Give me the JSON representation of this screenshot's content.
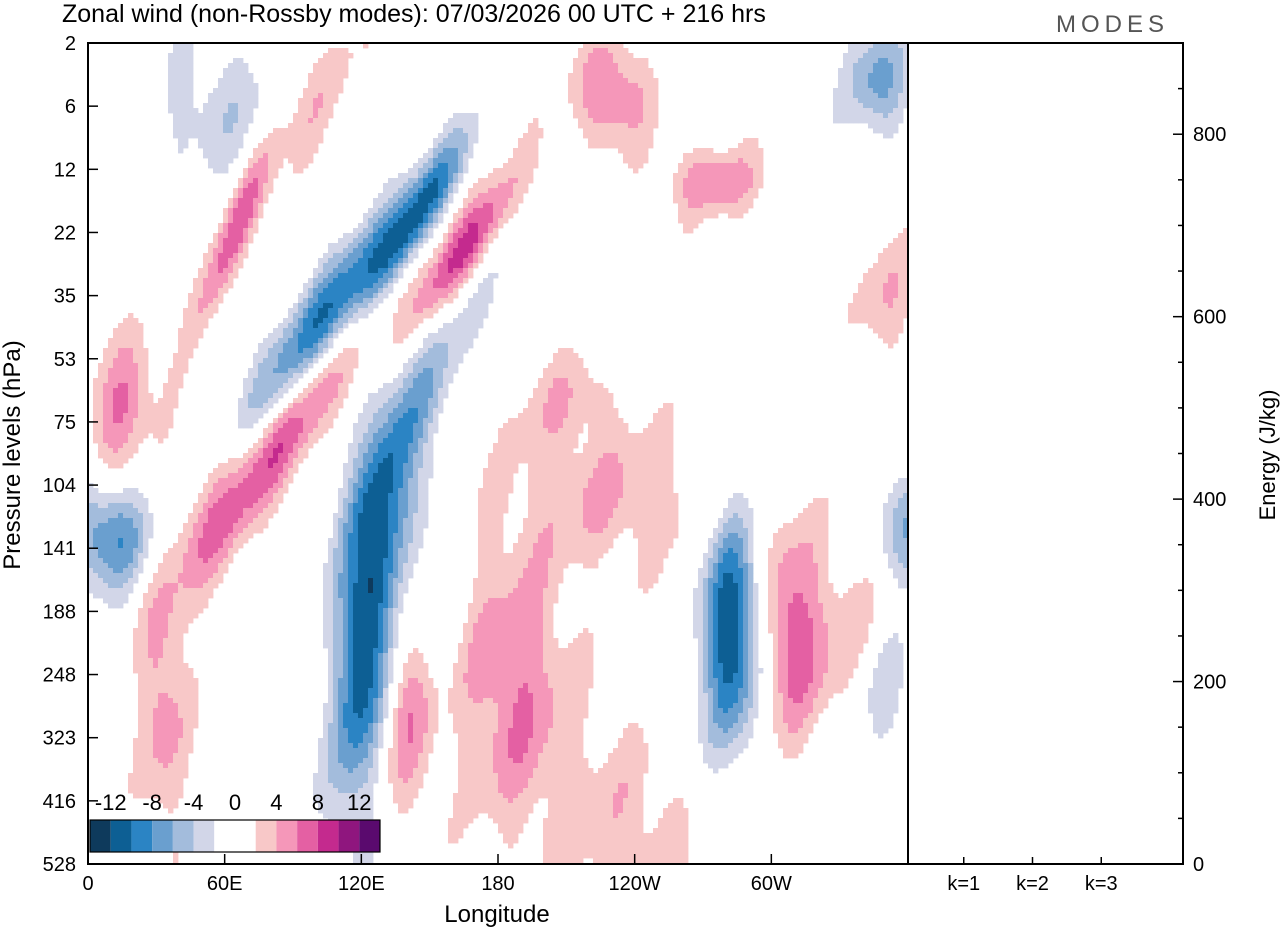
{
  "title": "Zonal wind (non-Rossby modes):  07/03/2026  00 UTC  + 216 hrs",
  "logo": "MODES",
  "colors": {
    "neg": [
      "#0e3a5c",
      "#0d5f94",
      "#2b84c4",
      "#6a9fcf",
      "#a3bcdc",
      "#d2d6e8"
    ],
    "pos": [
      "#f8c8c8",
      "#f597b9",
      "#e460a3",
      "#c42a8e",
      "#8f167e",
      "#5a0a6e"
    ],
    "line": "#000000"
  },
  "chart_data": [
    {
      "type": "heatmap",
      "title": "Zonal wind (non-Rossby modes):  07/03/2026  00 UTC  + 216 hrs",
      "xlabel": "Longitude",
      "ylabel": "Pressure levels (hPa)",
      "x_ticks": [
        "0",
        "60E",
        "120E",
        "180",
        "120W",
        "60W"
      ],
      "x_tick_values": [
        0,
        60,
        120,
        180,
        240,
        300
      ],
      "xlim": [
        0,
        360
      ],
      "y_ticks": [
        "2",
        "6",
        "12",
        "22",
        "35",
        "53",
        "75",
        "104",
        "141",
        "188",
        "248",
        "323",
        "416",
        "528"
      ],
      "colorbar": {
        "labels": [
          "-12",
          "-8",
          "-4",
          "0",
          "4",
          "8",
          "12"
        ],
        "label_values": [
          -12,
          -8,
          -4,
          0,
          4,
          8,
          12
        ],
        "levels": [
          -14,
          -12,
          -10,
          -8,
          -6,
          -4,
          -2,
          2,
          4,
          6,
          8,
          10,
          12,
          14
        ]
      },
      "features": [
        {
          "lon": 62,
          "lev": 3.2,
          "a": 7.5,
          "rl": 14,
          "rv": 0.45,
          "tilt": 0.08
        },
        {
          "lon": 104,
          "lev": 4.3,
          "a": -9.5,
          "rl": 24,
          "rv": 0.55,
          "tilt": 0.045
        },
        {
          "lon": 145,
          "lev": 2.7,
          "a": -9.5,
          "rl": 15,
          "rv": 0.4,
          "tilt": 0.05
        },
        {
          "lon": 165,
          "lev": 3.3,
          "a": 9,
          "rl": 18,
          "rv": 0.42,
          "tilt": 0.045
        },
        {
          "lon": 138,
          "lev": 6.2,
          "a": -7,
          "rl": 24,
          "rv": 0.6,
          "tilt": 0.06
        },
        {
          "lon": 88,
          "lev": 6.2,
          "a": 7,
          "rl": 20,
          "rv": 0.55,
          "tilt": 0.05
        },
        {
          "lon": 15,
          "lev": 5.8,
          "a": 6.5,
          "rl": 10,
          "rv": 0.7,
          "tilt": 0.03
        },
        {
          "lon": 9,
          "lev": 7.8,
          "a": -8.5,
          "rl": 13,
          "rv": 0.6,
          "tilt": 0
        },
        {
          "lon": 54,
          "lev": 7.6,
          "a": 4.5,
          "rl": 14,
          "rv": 0.8,
          "tilt": 0.04
        },
        {
          "lon": 123,
          "lev": 9.3,
          "a": -13.5,
          "rl": 10,
          "rv": 1.6,
          "tilt": 0.1
        },
        {
          "lon": 33,
          "lev": 10.5,
          "a": 5,
          "rl": 8,
          "rv": 1.5,
          "tilt": 0
        },
        {
          "lon": 140,
          "lev": 10.5,
          "a": 5.5,
          "rl": 9,
          "rv": 1.2,
          "tilt": 0
        },
        {
          "lon": 187,
          "lev": 10.2,
          "a": 6,
          "rl": 18,
          "rv": 1.6,
          "tilt": 0
        },
        {
          "lon": 282,
          "lev": 9.3,
          "a": -12,
          "rl": 9,
          "rv": 1.3,
          "tilt": 0
        },
        {
          "lon": 308,
          "lev": 9.3,
          "a": 6,
          "rl": 9,
          "rv": 1.2,
          "tilt": 0
        },
        {
          "lon": 330,
          "lev": 9.5,
          "a": 3.5,
          "rl": 16,
          "rv": 1.1,
          "tilt": 0
        },
        {
          "lon": 233,
          "lev": 7.2,
          "a": 4,
          "rl": 32,
          "rv": 0.8,
          "tilt": 0
        },
        {
          "lon": 208,
          "lev": 5.6,
          "a": 3,
          "rl": 18,
          "rv": 0.6,
          "tilt": 0
        },
        {
          "lon": 230,
          "lev": 0.8,
          "a": 6.5,
          "rl": 12,
          "rv": 0.6,
          "tilt": 0
        },
        {
          "lon": 275,
          "lev": 2.2,
          "a": 5.5,
          "rl": 16,
          "rv": 0.4,
          "tilt": 0
        },
        {
          "lon": 347,
          "lev": 0.6,
          "a": -6.5,
          "rl": 10,
          "rv": 0.6,
          "tilt": 0
        },
        {
          "lon": 236,
          "lev": 12.6,
          "a": 3.5,
          "rl": 22,
          "rv": 1.2,
          "tilt": 0
        },
        {
          "lon": 350,
          "lev": 10.3,
          "a": -4,
          "rl": 10,
          "rv": 0.8,
          "tilt": 0
        },
        {
          "lon": 55,
          "lev": 1.0,
          "a": -3.2,
          "rl": 20,
          "rv": 0.8,
          "tilt": 0
        },
        {
          "lon": 100,
          "lev": 1.2,
          "a": 3.2,
          "rl": 16,
          "rv": 0.6,
          "tilt": 0.06
        },
        {
          "lon": 150,
          "lev": 8.5,
          "a": -3.2,
          "rl": 8,
          "rv": 1.2,
          "tilt": 0
        },
        {
          "lon": 350,
          "lev": 4.0,
          "a": 3.5,
          "rl": 10,
          "rv": 0.8,
          "tilt": 0
        }
      ]
    },
    {
      "type": "bar",
      "categories": [
        "k=1",
        "k=2",
        "k=3"
      ],
      "values": [
        0,
        0,
        0
      ],
      "ylabel": "Energy (J/kg)",
      "y_ticks": [
        0,
        200,
        400,
        600,
        800
      ],
      "ylim": [
        0,
        900
      ]
    }
  ]
}
